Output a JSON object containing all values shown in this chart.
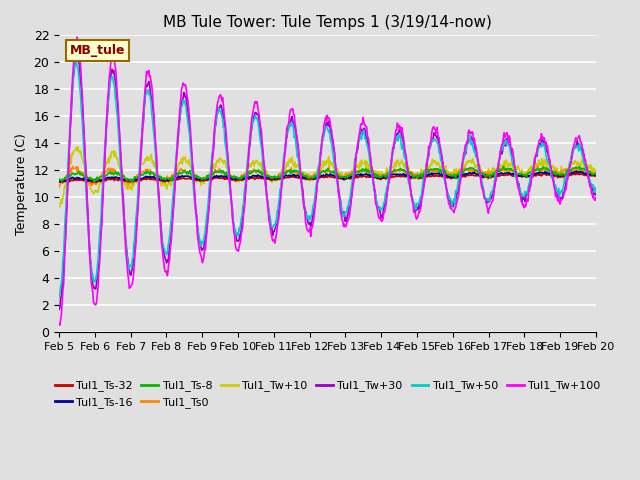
{
  "title": "MB Tule Tower: Tule Temps 1 (3/19/14-now)",
  "xlabel": "",
  "ylabel": "Temperature (C)",
  "ylim": [
    0,
    22
  ],
  "yticks": [
    0,
    2,
    4,
    6,
    8,
    10,
    12,
    14,
    16,
    18,
    20,
    22
  ],
  "background_color": "#e0e0e0",
  "plot_bg_color": "#e0e0e0",
  "grid_color": "#ffffff",
  "series": [
    {
      "label": "Tul1_Ts-32",
      "color": "#cc0000",
      "lw": 1.2,
      "zorder": 5
    },
    {
      "label": "Tul1_Ts-16",
      "color": "#000099",
      "lw": 1.2,
      "zorder": 5
    },
    {
      "label": "Tul1_Ts-8",
      "color": "#00bb00",
      "lw": 1.2,
      "zorder": 5
    },
    {
      "label": "Tul1_Ts0",
      "color": "#ff8800",
      "lw": 1.2,
      "zorder": 4
    },
    {
      "label": "Tul1_Tw+10",
      "color": "#cccc00",
      "lw": 1.2,
      "zorder": 3
    },
    {
      "label": "Tul1_Tw+30",
      "color": "#9900cc",
      "lw": 1.2,
      "zorder": 6
    },
    {
      "label": "Tul1_Tw+50",
      "color": "#00cccc",
      "lw": 1.2,
      "zorder": 6
    },
    {
      "label": "Tul1_Tw+100",
      "color": "#ff00ff",
      "lw": 1.2,
      "zorder": 7
    }
  ],
  "legend_box": {
    "text": "MB_tule",
    "bg_color": "#ffffcc",
    "border_color": "#996600",
    "text_color": "#880000"
  },
  "xticklabels": [
    "Feb 5",
    "Feb 6",
    "Feb 7",
    "Feb 8",
    "Feb 9",
    "Feb 10",
    "Feb 11",
    "Feb 12",
    "Feb 13",
    "Feb 14",
    "Feb 15",
    "Feb 16",
    "Feb 17",
    "Feb 18",
    "Feb 19",
    "Feb 20"
  ],
  "num_days": 15
}
